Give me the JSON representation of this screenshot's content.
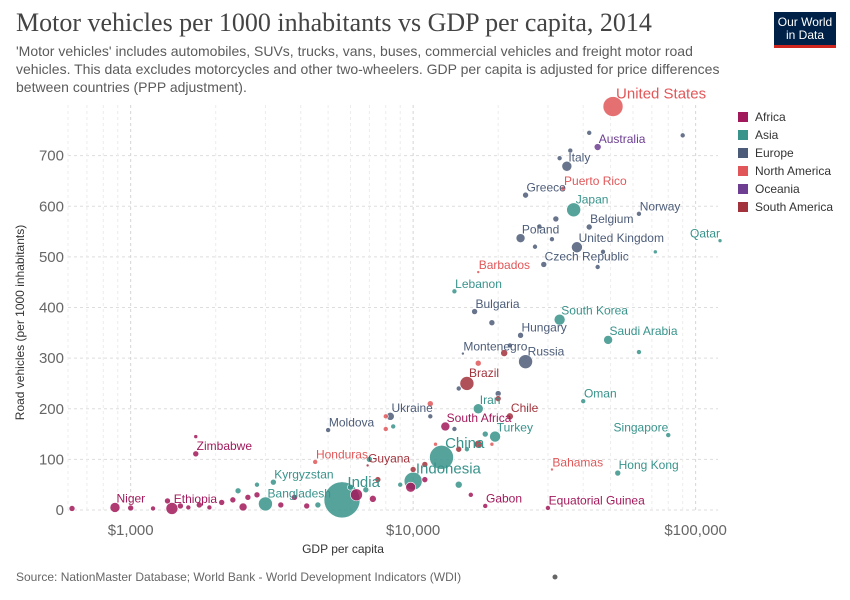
{
  "header": {
    "title": "Motor vehicles per 1000 inhabitants vs GDP per capita, 2014",
    "subtitle": "'Motor vehicles' includes automobiles, SUVs, trucks, vans, buses, commercial vehicles and freight motor road vehicles. This data excludes motorcycles and other two-wheelers. GDP per capita is adjusted for price differences between countries (PPP adjustment).",
    "logo_line1": "Our World",
    "logo_line2": "in Data"
  },
  "footer": {
    "source": "Source: NationMaster Database; World Bank - World Development Indicators (WDI)"
  },
  "chart_data": {
    "type": "scatter",
    "xscale": "log",
    "xlim": [
      600,
      120000
    ],
    "ylim": [
      0,
      800
    ],
    "xlabel": "GDP per capita",
    "ylabel": "Road vehicles (per 1000 inhabitants)",
    "x_ticks": [
      {
        "value": 1000,
        "label": "$1,000"
      },
      {
        "value": 10000,
        "label": "$10,000"
      },
      {
        "value": 100000,
        "label": "$100,000"
      }
    ],
    "y_ticks": [
      0,
      100,
      200,
      300,
      400,
      500,
      600,
      700
    ],
    "grid": "dotted",
    "legend_position": "right",
    "legend": [
      {
        "name": "Africa",
        "color": "#a2195b"
      },
      {
        "name": "Asia",
        "color": "#38938b"
      },
      {
        "name": "Europe",
        "color": "#4c5c78"
      },
      {
        "name": "North America",
        "color": "#e15759"
      },
      {
        "name": "Oceania",
        "color": "#6d3e91"
      },
      {
        "name": "South America",
        "color": "#a2333c"
      }
    ],
    "labeled_points": [
      {
        "label": "United States",
        "x": 51000,
        "y": 797,
        "region": "North America",
        "size": 10
      },
      {
        "label": "Australia",
        "x": 45000,
        "y": 717,
        "region": "Oceania",
        "size": 3.5
      },
      {
        "label": "Italy",
        "x": 35000,
        "y": 679,
        "region": "Europe",
        "size": 5
      },
      {
        "label": "Puerto Rico",
        "x": 34000,
        "y": 635,
        "region": "North America",
        "size": 2.5
      },
      {
        "label": "Greece",
        "x": 25000,
        "y": 622,
        "region": "Europe",
        "size": 3
      },
      {
        "label": "Japan",
        "x": 37000,
        "y": 593,
        "region": "Asia",
        "size": 7
      },
      {
        "label": "Norway",
        "x": 63000,
        "y": 585,
        "region": "Europe",
        "size": 2.5
      },
      {
        "label": "Belgium",
        "x": 42000,
        "y": 559,
        "region": "Europe",
        "size": 3
      },
      {
        "label": "Qatar",
        "x": 122000,
        "y": 532,
        "region": "Asia",
        "size": 2
      },
      {
        "label": "Poland",
        "x": 24000,
        "y": 537,
        "region": "Europe",
        "size": 4.5
      },
      {
        "label": "United Kingdom",
        "x": 38000,
        "y": 519,
        "region": "Europe",
        "size": 5.5
      },
      {
        "label": "Czech Republic",
        "x": 29000,
        "y": 485,
        "region": "Europe",
        "size": 3
      },
      {
        "label": "Barbados",
        "x": 17000,
        "y": 470,
        "region": "North America",
        "size": 1.5
      },
      {
        "label": "Lebanon",
        "x": 14000,
        "y": 432,
        "region": "Asia",
        "size": 2.5
      },
      {
        "label": "Bulgaria",
        "x": 16500,
        "y": 392,
        "region": "Europe",
        "size": 3
      },
      {
        "label": "South Korea",
        "x": 33000,
        "y": 376,
        "region": "Asia",
        "size": 5.5
      },
      {
        "label": "Hungary",
        "x": 24000,
        "y": 345,
        "region": "Europe",
        "size": 3
      },
      {
        "label": "Saudi Arabia",
        "x": 49000,
        "y": 336,
        "region": "Asia",
        "size": 4.5
      },
      {
        "label": "Montenegro",
        "x": 15000,
        "y": 309,
        "region": "Europe",
        "size": 1.5
      },
      {
        "label": "Russia",
        "x": 25000,
        "y": 293,
        "region": "Europe",
        "size": 7
      },
      {
        "label": "Brazil",
        "x": 15500,
        "y": 250,
        "region": "South America",
        "size": 7
      },
      {
        "label": "Oman",
        "x": 40000,
        "y": 215,
        "region": "Asia",
        "size": 2.5
      },
      {
        "label": "Iran",
        "x": 17000,
        "y": 200,
        "region": "Asia",
        "size": 5
      },
      {
        "label": "Ukraine",
        "x": 8300,
        "y": 185,
        "region": "Europe",
        "size": 4
      },
      {
        "label": "Chile",
        "x": 22000,
        "y": 185,
        "region": "South America",
        "size": 3.5
      },
      {
        "label": "South Africa",
        "x": 13000,
        "y": 165,
        "region": "Africa",
        "size": 4.5
      },
      {
        "label": "Moldova",
        "x": 5000,
        "y": 158,
        "region": "Europe",
        "size": 2.5
      },
      {
        "label": "Singapore",
        "x": 80000,
        "y": 148,
        "region": "Asia",
        "size": 2.5
      },
      {
        "label": "Turkey",
        "x": 19500,
        "y": 145,
        "region": "Asia",
        "size": 5.5
      },
      {
        "label": "Zimbabwe",
        "x": 1700,
        "y": 111,
        "region": "Africa",
        "size": 3
      },
      {
        "label": "China",
        "x": 12600,
        "y": 104,
        "region": "Asia",
        "size": 12
      },
      {
        "label": "Honduras",
        "x": 4500,
        "y": 95,
        "region": "North America",
        "size": 2.5
      },
      {
        "label": "Guyana",
        "x": 6900,
        "y": 88,
        "region": "South America",
        "size": 1.5
      },
      {
        "label": "Bahamas",
        "x": 31000,
        "y": 80,
        "region": "North America",
        "size": 1.5
      },
      {
        "label": "Hong Kong",
        "x": 53000,
        "y": 73,
        "region": "Asia",
        "size": 3
      },
      {
        "label": "Indonesia",
        "x": 10000,
        "y": 57,
        "region": "Asia",
        "size": 9
      },
      {
        "label": "Kyrgyzstan",
        "x": 3200,
        "y": 55,
        "region": "Asia",
        "size": 3
      },
      {
        "label": "India",
        "x": 5600,
        "y": 20,
        "region": "Asia",
        "size": 18
      },
      {
        "label": "Bangladesh",
        "x": 3000,
        "y": 12,
        "region": "Asia",
        "size": 7
      },
      {
        "label": "Niger",
        "x": 880,
        "y": 5,
        "region": "Africa",
        "size": 5
      },
      {
        "label": "Ethiopia",
        "x": 1400,
        "y": 3,
        "region": "Africa",
        "size": 6
      },
      {
        "label": "Gabon",
        "x": 18000,
        "y": 8,
        "region": "Africa",
        "size": 2.5
      },
      {
        "label": "Equatorial Guinea",
        "x": 30000,
        "y": 4,
        "region": "Africa",
        "size": 2.5
      }
    ],
    "unlabeled_points": [
      {
        "x": 620,
        "y": 3,
        "region": "Africa",
        "size": 3
      },
      {
        "x": 1000,
        "y": 4,
        "region": "Africa",
        "size": 3
      },
      {
        "x": 1200,
        "y": 3,
        "region": "Africa",
        "size": 2.5
      },
      {
        "x": 1350,
        "y": 18,
        "region": "Africa",
        "size": 3
      },
      {
        "x": 1500,
        "y": 8,
        "region": "Africa",
        "size": 3
      },
      {
        "x": 1600,
        "y": 5,
        "region": "Africa",
        "size": 2.5
      },
      {
        "x": 1750,
        "y": 10,
        "region": "Africa",
        "size": 3
      },
      {
        "x": 1900,
        "y": 5,
        "region": "Africa",
        "size": 2.5
      },
      {
        "x": 2100,
        "y": 15,
        "region": "Africa",
        "size": 3
      },
      {
        "x": 2300,
        "y": 20,
        "region": "Africa",
        "size": 3
      },
      {
        "x": 2500,
        "y": 6,
        "region": "Africa",
        "size": 4
      },
      {
        "x": 2600,
        "y": 25,
        "region": "Africa",
        "size": 3
      },
      {
        "x": 2800,
        "y": 30,
        "region": "Africa",
        "size": 3
      },
      {
        "x": 3400,
        "y": 10,
        "region": "Africa",
        "size": 3
      },
      {
        "x": 3800,
        "y": 25,
        "region": "Africa",
        "size": 3
      },
      {
        "x": 4200,
        "y": 8,
        "region": "Africa",
        "size": 3
      },
      {
        "x": 6300,
        "y": 30,
        "region": "Africa",
        "size": 6
      },
      {
        "x": 7200,
        "y": 22,
        "region": "Africa",
        "size": 3.5
      },
      {
        "x": 9800,
        "y": 45,
        "region": "Africa",
        "size": 5
      },
      {
        "x": 11000,
        "y": 60,
        "region": "Africa",
        "size": 3
      },
      {
        "x": 16000,
        "y": 30,
        "region": "Africa",
        "size": 2.5
      },
      {
        "x": 1700,
        "y": 145,
        "region": "Africa",
        "size": 2
      },
      {
        "x": 2400,
        "y": 38,
        "region": "Asia",
        "size": 3
      },
      {
        "x": 4600,
        "y": 10,
        "region": "Asia",
        "size": 3
      },
      {
        "x": 6000,
        "y": 45,
        "region": "Asia",
        "size": 3
      },
      {
        "x": 6800,
        "y": 40,
        "region": "Asia",
        "size": 3
      },
      {
        "x": 8500,
        "y": 165,
        "region": "Asia",
        "size": 2.5
      },
      {
        "x": 14500,
        "y": 50,
        "region": "Asia",
        "size": 3.5
      },
      {
        "x": 15500,
        "y": 120,
        "region": "Asia",
        "size": 2.5
      },
      {
        "x": 18000,
        "y": 150,
        "region": "Asia",
        "size": 3
      },
      {
        "x": 63000,
        "y": 312,
        "region": "Asia",
        "size": 2.5
      },
      {
        "x": 72000,
        "y": 510,
        "region": "Asia",
        "size": 2
      },
      {
        "x": 11500,
        "y": 185,
        "region": "Europe",
        "size": 2.5
      },
      {
        "x": 14500,
        "y": 240,
        "region": "Europe",
        "size": 2.5
      },
      {
        "x": 19000,
        "y": 370,
        "region": "Europe",
        "size": 3
      },
      {
        "x": 20000,
        "y": 230,
        "region": "Europe",
        "size": 3
      },
      {
        "x": 22000,
        "y": 325,
        "region": "Europe",
        "size": 2.5
      },
      {
        "x": 27000,
        "y": 520,
        "region": "Europe",
        "size": 2.5
      },
      {
        "x": 28000,
        "y": 560,
        "region": "Europe",
        "size": 2.5
      },
      {
        "x": 31000,
        "y": 535,
        "region": "Europe",
        "size": 2.5
      },
      {
        "x": 32000,
        "y": 575,
        "region": "Europe",
        "size": 3
      },
      {
        "x": 33000,
        "y": 695,
        "region": "Europe",
        "size": 2.5
      },
      {
        "x": 36000,
        "y": 710,
        "region": "Europe",
        "size": 2.5
      },
      {
        "x": 42000,
        "y": 745,
        "region": "Europe",
        "size": 2.5
      },
      {
        "x": 45000,
        "y": 480,
        "region": "Europe",
        "size": 2.5
      },
      {
        "x": 47000,
        "y": 510,
        "region": "Europe",
        "size": 2.5
      },
      {
        "x": 90000,
        "y": 740,
        "region": "Europe",
        "size": 2.5
      },
      {
        "x": 8000,
        "y": 160,
        "region": "North America",
        "size": 2.5
      },
      {
        "x": 11500,
        "y": 210,
        "region": "North America",
        "size": 3
      },
      {
        "x": 17000,
        "y": 290,
        "region": "North America",
        "size": 3
      },
      {
        "x": 12000,
        "y": 130,
        "region": "North America",
        "size": 2
      },
      {
        "x": 8000,
        "y": 185,
        "region": "North America",
        "size": 2.5
      },
      {
        "x": 19000,
        "y": 130,
        "region": "North America",
        "size": 2
      },
      {
        "x": 10000,
        "y": 80,
        "region": "South America",
        "size": 3
      },
      {
        "x": 14500,
        "y": 120,
        "region": "South America",
        "size": 3
      },
      {
        "x": 17000,
        "y": 130,
        "region": "South America",
        "size": 4
      },
      {
        "x": 20000,
        "y": 220,
        "region": "South America",
        "size": 3
      },
      {
        "x": 21000,
        "y": 310,
        "region": "South America",
        "size": 3.5
      },
      {
        "x": 11000,
        "y": 90,
        "region": "South America",
        "size": 3
      },
      {
        "x": 7500,
        "y": 60,
        "region": "South America",
        "size": 3
      },
      {
        "x": 2800,
        "y": 50,
        "region": "Asia",
        "size": 2.5
      },
      {
        "x": 7000,
        "y": 100,
        "region": "Asia",
        "size": 3
      },
      {
        "x": 14000,
        "y": 160,
        "region": "Europe",
        "size": 2.5
      },
      {
        "x": 9000,
        "y": 50,
        "region": "Asia",
        "size": 2.5
      }
    ]
  }
}
